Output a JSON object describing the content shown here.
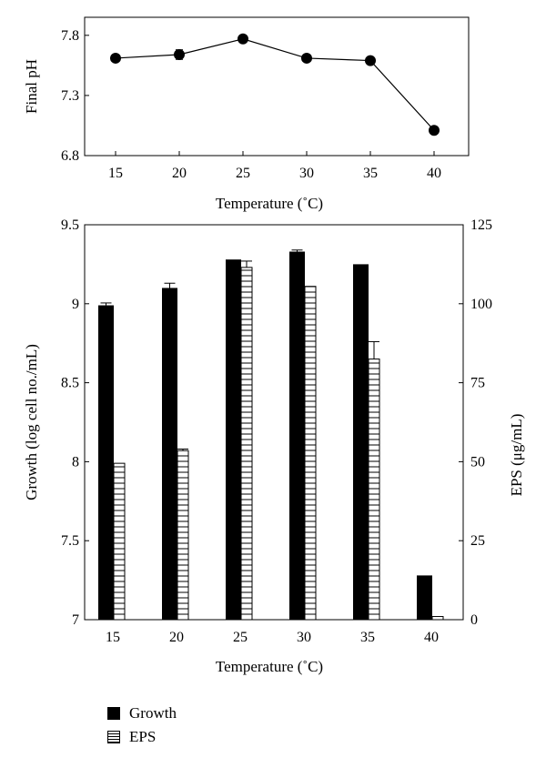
{
  "chart_data": [
    {
      "type": "line",
      "x": [
        15,
        20,
        25,
        30,
        35,
        40
      ],
      "series": [
        {
          "name": "",
          "values": [
            7.61,
            7.64,
            7.77,
            7.61,
            7.59,
            7.01
          ],
          "errors": [
            0.03,
            0.04,
            0.02,
            0.02,
            0.02,
            0.02
          ]
        }
      ],
      "xlabel": "Temperature (˚C)",
      "ylabel": "Final pH",
      "xticks": [
        "15",
        "20",
        "25",
        "30",
        "35",
        "40"
      ],
      "yticks": [
        "6.8",
        "7.3",
        "7.8"
      ],
      "ylim": [
        6.8,
        7.95
      ],
      "grid": false
    },
    {
      "type": "bar",
      "categories": [
        "15",
        "20",
        "25",
        "30",
        "35",
        "40"
      ],
      "series": [
        {
          "name": "Growth",
          "axis": "left",
          "values": [
            8.99,
            9.1,
            9.28,
            9.33,
            9.25,
            7.28
          ],
          "errors": [
            0.015,
            0.03,
            0,
            0.01,
            0,
            0
          ]
        },
        {
          "name": "EPS",
          "axis": "right",
          "values": [
            49.5,
            53.5,
            111.5,
            105.5,
            82.5,
            1.0
          ],
          "errors": [
            0,
            0.5,
            2.0,
            0,
            5.5,
            0
          ]
        }
      ],
      "xlabel": "Temperature (˚C)",
      "ylabel": "Growth (log cell no./mL)",
      "y2label": "EPS (μg/mL)",
      "ylim": [
        7,
        9.5
      ],
      "y2lim": [
        0,
        125
      ],
      "yticks": [
        "7",
        "7.5",
        "8",
        "8.5",
        "9",
        "9.5"
      ],
      "y2ticks": [
        "0",
        "25",
        "50",
        "75",
        "100",
        "125"
      ],
      "grid": false,
      "legend_position": "bottom-left",
      "legend": [
        "Growth",
        "EPS"
      ]
    }
  ]
}
